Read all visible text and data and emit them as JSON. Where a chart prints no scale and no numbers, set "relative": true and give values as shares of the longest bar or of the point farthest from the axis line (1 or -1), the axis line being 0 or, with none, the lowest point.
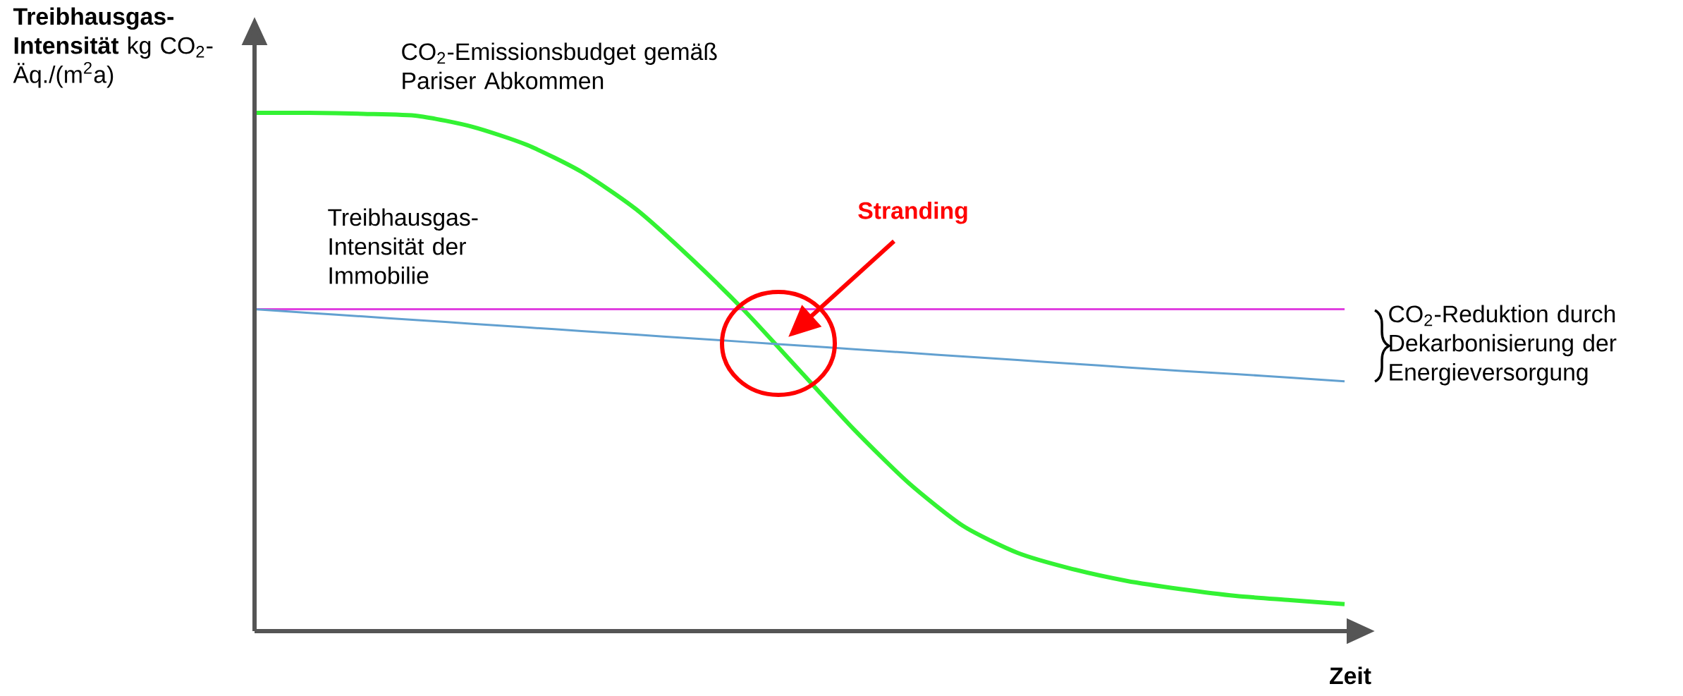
{
  "chart_data": {
    "type": "line",
    "relative": true,
    "ylabel": "**Treibhausgas-Intensität** kg CO$_{2}$-Äq./(m$^{2}$a)",
    "xlabel": "Zeit",
    "categories": [
      null,
      null,
      null,
      null,
      null,
      null,
      null,
      null,
      null,
      null,
      null,
      null,
      null,
      null,
      null,
      null,
      null,
      null,
      null,
      null,
      null
    ],
    "series": [
      {
        "name": "CO$_{2}$-Emissionsbudget gemäß Pariser Abkommen",
        "color": "#33f233",
        "values": [
          1.0,
          1.0,
          0.998,
          0.994,
          0.973,
          0.938,
          0.886,
          0.814,
          0.72,
          0.617,
          0.503,
          0.389,
          0.286,
          0.203,
          0.151,
          0.12,
          0.097,
          0.081,
          0.068,
          0.06,
          0.052
        ]
      },
      {
        "name": "Treibhausgas-Intensität der Immobilie",
        "color": "#e040e0",
        "values": [
          0.621,
          0.621,
          0.621,
          0.621,
          0.621,
          0.621,
          0.621,
          0.621,
          0.621,
          0.621,
          0.621,
          0.621,
          0.621,
          0.621,
          0.621,
          0.621,
          0.621,
          0.621,
          0.621,
          0.621,
          0.621
        ]
      },
      {
        "color": "#62a0d0",
        "values": [
          0.621,
          0.614,
          0.607,
          0.6,
          0.593,
          0.586,
          0.579,
          0.572,
          0.565,
          0.558,
          0.551,
          0.544,
          0.537,
          0.53,
          0.523,
          0.516,
          0.509,
          0.502,
          0.496,
          0.489,
          0.482
        ]
      }
    ],
    "annotations": [
      "Stranding",
      "CO$_{2}$-Reduktion durch Dekarbonisierung der Energieversorgung"
    ]
  }
}
